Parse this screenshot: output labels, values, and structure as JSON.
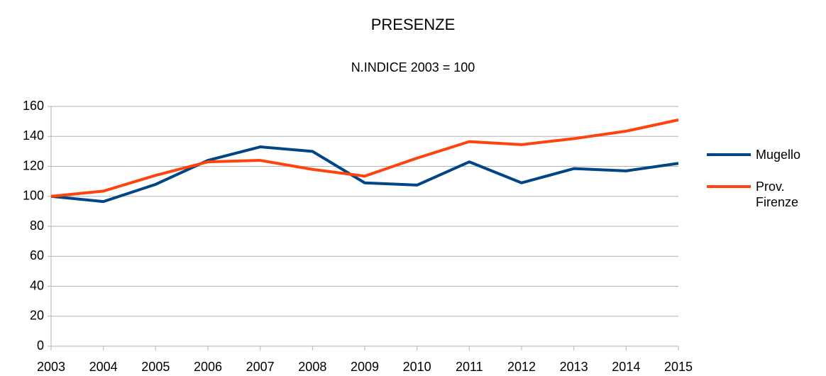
{
  "chart_data": {
    "type": "line",
    "title": "PRESENZE",
    "subtitle": "N.INDICE 2003 = 100",
    "categories": [
      "2003",
      "2004",
      "2005",
      "2006",
      "2007",
      "2008",
      "2009",
      "2010",
      "2011",
      "2012",
      "2013",
      "2014",
      "2015"
    ],
    "series": [
      {
        "name": "Mugello",
        "color": "#004586",
        "values": [
          100,
          96.5,
          108,
          124,
          133,
          130,
          109,
          107.5,
          123,
          109,
          118.5,
          117,
          122
        ]
      },
      {
        "name": "Prov. Firenze",
        "color": "#ff420e",
        "values": [
          100,
          103.5,
          114,
          123,
          124,
          118,
          113.5,
          125.5,
          136.5,
          134.5,
          138.5,
          143.5,
          151
        ]
      }
    ],
    "ylim": [
      0,
      160
    ],
    "yticks": [
      0,
      20,
      40,
      60,
      80,
      100,
      120,
      140,
      160
    ],
    "grid": true,
    "legend": "right"
  }
}
